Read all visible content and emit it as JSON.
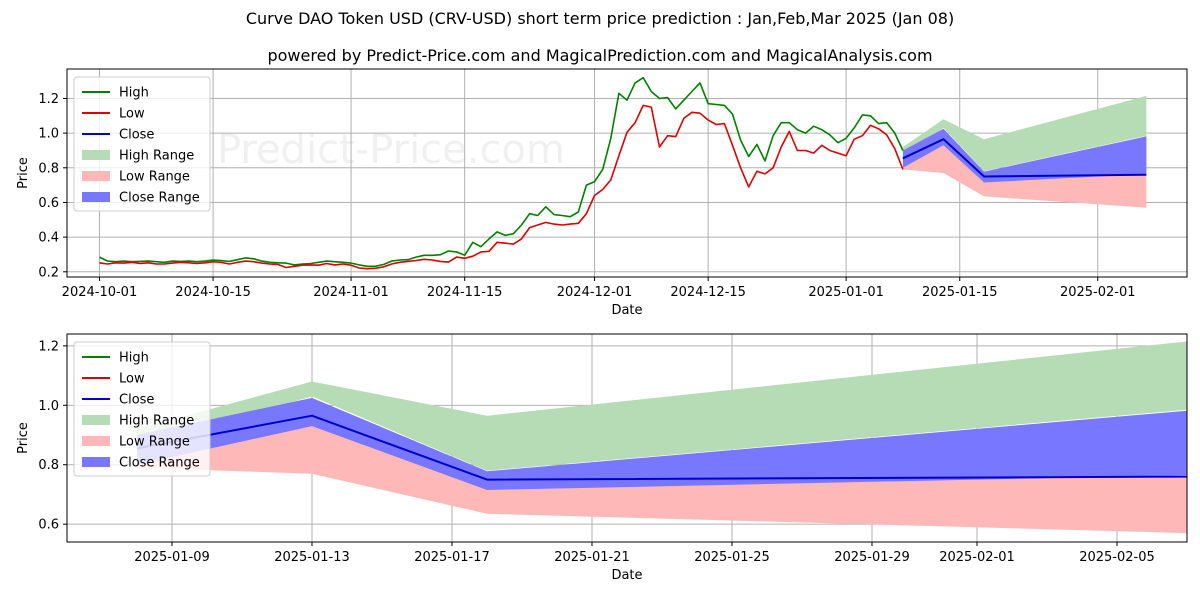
{
  "title": "Curve DAO Token USD (CRV-USD) short term price prediction : Jan,Feb,Mar 2025 (Jan 08)",
  "subtitle": "powered by Predict-Price.com and MagicalPrediction.com and MagicalAnalysis.com",
  "watermark": "Predict-Price.com",
  "colors": {
    "high": "#008000",
    "low": "#dd0000",
    "close": "#0000cc",
    "high_range": "#b6dcb6",
    "low_range": "#ffb8b8",
    "close_range": "#7777ff",
    "grid": "#b0b0b0"
  },
  "chart_data": [
    {
      "type": "line",
      "name": "top",
      "xlabel": "Date",
      "ylabel": "Price",
      "grid": true,
      "legend_position": "upper-left",
      "x_range": [
        "2024-09-27",
        "2025-02-12"
      ],
      "ylim": [
        0.17,
        1.37
      ],
      "x_ticks": [
        "2024-10-01",
        "2024-10-15",
        "2024-11-01",
        "2024-11-15",
        "2024-12-01",
        "2024-12-15",
        "2025-01-01",
        "2025-01-15",
        "2025-02-01"
      ],
      "y_ticks": [
        0.2,
        0.4,
        0.6,
        0.8,
        1.0,
        1.2
      ],
      "y_tick_labels": [
        "0.2",
        "0.4",
        "0.6",
        "0.8",
        "1.0",
        "1.2"
      ],
      "legend": [
        "High",
        "Low",
        "Close",
        "High Range",
        "Low Range",
        "Close Range"
      ],
      "history_start": "2024-10-01",
      "history_high": [
        0.285,
        0.262,
        0.258,
        0.262,
        0.258,
        0.26,
        0.262,
        0.258,
        0.255,
        0.262,
        0.26,
        0.262,
        0.258,
        0.262,
        0.268,
        0.265,
        0.26,
        0.27,
        0.28,
        0.275,
        0.262,
        0.255,
        0.252,
        0.25,
        0.24,
        0.245,
        0.248,
        0.255,
        0.262,
        0.258,
        0.255,
        0.25,
        0.24,
        0.232,
        0.232,
        0.242,
        0.262,
        0.268,
        0.27,
        0.285,
        0.295,
        0.295,
        0.298,
        0.32,
        0.315,
        0.295,
        0.37,
        0.345,
        0.39,
        0.43,
        0.41,
        0.42,
        0.47,
        0.535,
        0.525,
        0.575,
        0.53,
        0.525,
        0.518,
        0.545,
        0.7,
        0.72,
        0.79,
        0.97,
        1.23,
        1.19,
        1.29,
        1.32,
        1.24,
        1.2,
        1.205,
        1.14,
        1.19,
        1.24,
        1.29,
        1.17,
        1.165,
        1.16,
        1.11,
        0.96,
        0.865,
        0.935,
        0.84,
        0.985,
        1.06,
        1.06,
        1.02,
        1.0,
        1.04,
        1.02,
        0.99,
        0.945,
        0.97,
        1.03,
        1.105,
        1.1,
        1.055,
        1.06,
        1.0,
        0.9
      ],
      "history_low": [
        0.252,
        0.245,
        0.252,
        0.25,
        0.255,
        0.248,
        0.252,
        0.245,
        0.245,
        0.25,
        0.255,
        0.252,
        0.248,
        0.252,
        0.258,
        0.255,
        0.245,
        0.255,
        0.262,
        0.258,
        0.25,
        0.245,
        0.242,
        0.225,
        0.232,
        0.238,
        0.24,
        0.238,
        0.248,
        0.24,
        0.245,
        0.238,
        0.222,
        0.218,
        0.22,
        0.228,
        0.245,
        0.255,
        0.26,
        0.265,
        0.272,
        0.268,
        0.26,
        0.256,
        0.285,
        0.278,
        0.29,
        0.315,
        0.318,
        0.37,
        0.365,
        0.36,
        0.39,
        0.455,
        0.47,
        0.485,
        0.475,
        0.47,
        0.475,
        0.48,
        0.535,
        0.64,
        0.675,
        0.73,
        0.87,
        1.005,
        1.06,
        1.16,
        1.15,
        0.92,
        0.985,
        0.98,
        1.085,
        1.12,
        1.115,
        1.075,
        1.05,
        1.055,
        0.93,
        0.8,
        0.69,
        0.78,
        0.765,
        0.8,
        0.92,
        1.01,
        0.9,
        0.9,
        0.885,
        0.93,
        0.9,
        0.885,
        0.87,
        0.965,
        0.985,
        1.045,
        1.025,
        0.99,
        0.91,
        0.79
      ]
    },
    {
      "type": "area",
      "name": "bottom",
      "xlabel": "Date",
      "ylabel": "Price",
      "grid": true,
      "legend_position": "upper-left",
      "x_range": [
        "2025-01-06",
        "2025-02-07"
      ],
      "ylim": [
        0.54,
        1.24
      ],
      "x_ticks": [
        "2025-01-09",
        "2025-01-13",
        "2025-01-17",
        "2025-01-21",
        "2025-01-25",
        "2025-01-29",
        "2025-02-01",
        "2025-02-05"
      ],
      "y_ticks": [
        0.6,
        0.8,
        1.0,
        1.2
      ],
      "y_tick_labels": [
        "0.6",
        "0.8",
        "1.0",
        "1.2"
      ],
      "legend": [
        "High",
        "Low",
        "Close",
        "High Range",
        "Low Range",
        "Close Range"
      ]
    }
  ],
  "forecast": {
    "dates": [
      "2025-01-08",
      "2025-01-13",
      "2025-01-18",
      "2025-02-07"
    ],
    "high_range_upper": [
      0.92,
      1.08,
      0.965,
      1.215
    ],
    "high_range_lower": [
      0.86,
      1.03,
      0.78,
      0.985
    ],
    "low_range_upper": [
      0.86,
      0.96,
      0.73,
      0.765
    ],
    "low_range_lower": [
      0.79,
      0.77,
      0.635,
      0.57
    ],
    "close_range_upper": [
      0.9,
      1.025,
      0.778,
      0.982
    ],
    "close_range_lower": [
      0.8,
      0.93,
      0.715,
      0.765
    ],
    "close": [
      0.855,
      0.965,
      0.75,
      0.76
    ]
  }
}
